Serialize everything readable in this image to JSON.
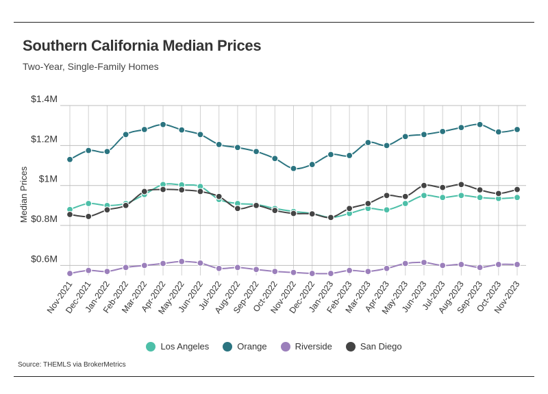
{
  "header": {
    "title": "Southern California Median Prices",
    "subtitle": "Two-Year, Single-Family Homes"
  },
  "footer": {
    "source": "Source:  THEMLS via BrokerMetrics"
  },
  "chart_data": {
    "type": "line",
    "title": "Southern California Median Prices",
    "subtitle": "Two-Year, Single-Family Homes",
    "xlabel": "",
    "ylabel": "Median Prices",
    "ylim": [
      0.55,
      1.4
    ],
    "yticks": [
      0.6,
      0.8,
      1.0,
      1.2,
      1.4
    ],
    "ytick_labels": [
      "$0.6M",
      "$0.8M",
      "$1M",
      "$1.2M",
      "$1.4M"
    ],
    "grid": "vertical and horizontal",
    "legend_position": "bottom",
    "categories": [
      "Nov-2021",
      "Dec-2021",
      "Jan-2022",
      "Feb-2022",
      "Mar-2022",
      "Apr-2022",
      "May-2022",
      "Jun-2022",
      "Jul-2022",
      "Aug-2022",
      "Sep-2022",
      "Oct-2022",
      "Nov-2022",
      "Dec-2022",
      "Jan-2023",
      "Feb-2023",
      "Mar-2023",
      "Apr-2023",
      "May-2023",
      "Jun-2023",
      "Jul-2023",
      "Aug-2023",
      "Sep-2023",
      "Oct-2023",
      "Nov-2023"
    ],
    "series": [
      {
        "name": "Los Angeles",
        "color": "#4dbfa8",
        "values": [
          0.88,
          0.91,
          0.9,
          0.91,
          0.955,
          1.005,
          1.003,
          0.995,
          0.93,
          0.91,
          0.905,
          0.885,
          0.87,
          0.86,
          0.84,
          0.86,
          0.885,
          0.878,
          0.91,
          0.95,
          0.94,
          0.95,
          0.94,
          0.935,
          0.94
        ]
      },
      {
        "name": "Orange",
        "color": "#2b7480",
        "values": [
          1.13,
          1.175,
          1.17,
          1.255,
          1.28,
          1.305,
          1.278,
          1.255,
          1.205,
          1.19,
          1.17,
          1.135,
          1.085,
          1.105,
          1.155,
          1.15,
          1.215,
          1.2,
          1.245,
          1.255,
          1.27,
          1.29,
          1.305,
          1.268,
          1.28
        ]
      },
      {
        "name": "Riverside",
        "color": "#9b7fbb",
        "values": [
          0.56,
          0.575,
          0.57,
          0.59,
          0.6,
          0.61,
          0.62,
          0.612,
          0.585,
          0.59,
          0.58,
          0.57,
          0.565,
          0.56,
          0.56,
          0.575,
          0.57,
          0.585,
          0.61,
          0.615,
          0.6,
          0.605,
          0.59,
          0.605,
          0.605
        ]
      },
      {
        "name": "San Diego",
        "color": "#444444",
        "values": [
          0.855,
          0.845,
          0.878,
          0.9,
          0.97,
          0.98,
          0.978,
          0.97,
          0.945,
          0.885,
          0.9,
          0.875,
          0.86,
          0.858,
          0.84,
          0.885,
          0.91,
          0.95,
          0.945,
          1.0,
          0.99,
          1.005,
          0.978,
          0.96,
          0.98
        ]
      }
    ]
  }
}
